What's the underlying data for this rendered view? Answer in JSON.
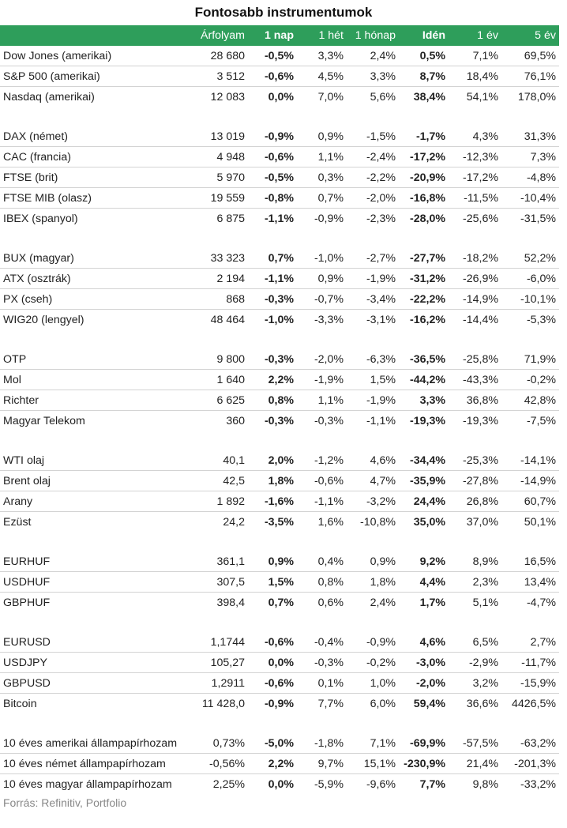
{
  "title": "Fontosabb instrumentumok",
  "source": "Forrás: Refinitiv, Portfolio",
  "colors": {
    "header_bg": "#2e9e5b",
    "header_text": "#ffffff",
    "divider": "#d3d3d3"
  },
  "headers": [
    "",
    "Árfolyam",
    "1 nap",
    "1 hét",
    "1 hónap",
    "Idén",
    "1 év",
    "5 év"
  ],
  "groups": [
    [
      [
        "Dow Jones (amerikai)",
        "28 680",
        "-0,5%",
        "3,3%",
        "2,4%",
        "0,5%",
        "7,1%",
        "69,5%"
      ],
      [
        "S&P 500 (amerikai)",
        "3 512",
        "-0,6%",
        "4,5%",
        "3,3%",
        "8,7%",
        "18,4%",
        "76,1%"
      ],
      [
        "Nasdaq (amerikai)",
        "12 083",
        "0,0%",
        "7,0%",
        "5,6%",
        "38,4%",
        "54,1%",
        "178,0%"
      ]
    ],
    [
      [
        "DAX (német)",
        "13 019",
        "-0,9%",
        "0,9%",
        "-1,5%",
        "-1,7%",
        "4,3%",
        "31,3%"
      ],
      [
        "CAC (francia)",
        "4 948",
        "-0,6%",
        "1,1%",
        "-2,4%",
        "-17,2%",
        "-12,3%",
        "7,3%"
      ],
      [
        "FTSE (brit)",
        "5 970",
        "-0,5%",
        "0,3%",
        "-2,2%",
        "-20,9%",
        "-17,2%",
        "-4,8%"
      ],
      [
        "FTSE MIB (olasz)",
        "19 559",
        "-0,8%",
        "0,7%",
        "-2,0%",
        "-16,8%",
        "-11,5%",
        "-10,4%"
      ],
      [
        "IBEX (spanyol)",
        "6 875",
        "-1,1%",
        "-0,9%",
        "-2,3%",
        "-28,0%",
        "-25,6%",
        "-31,5%"
      ]
    ],
    [
      [
        "BUX (magyar)",
        "33 323",
        "0,7%",
        "-1,0%",
        "-2,7%",
        "-27,7%",
        "-18,2%",
        "52,2%"
      ],
      [
        "ATX (osztrák)",
        "2 194",
        "-1,1%",
        "0,9%",
        "-1,9%",
        "-31,2%",
        "-26,9%",
        "-6,0%"
      ],
      [
        "PX (cseh)",
        "868",
        "-0,3%",
        "-0,7%",
        "-3,4%",
        "-22,2%",
        "-14,9%",
        "-10,1%"
      ],
      [
        "WIG20 (lengyel)",
        "48 464",
        "-1,0%",
        "-3,3%",
        "-3,1%",
        "-16,2%",
        "-14,4%",
        "-5,3%"
      ]
    ],
    [
      [
        "OTP",
        "9 800",
        "-0,3%",
        "-2,0%",
        "-6,3%",
        "-36,5%",
        "-25,8%",
        "71,9%"
      ],
      [
        "Mol",
        "1 640",
        "2,2%",
        "-1,9%",
        "1,5%",
        "-44,2%",
        "-43,3%",
        "-0,2%"
      ],
      [
        "Richter",
        "6 625",
        "0,8%",
        "1,1%",
        "-1,9%",
        "3,3%",
        "36,8%",
        "42,8%"
      ],
      [
        "Magyar Telekom",
        "360",
        "-0,3%",
        "-0,3%",
        "-1,1%",
        "-19,3%",
        "-19,3%",
        "-7,5%"
      ]
    ],
    [
      [
        "WTI olaj",
        "40,1",
        "2,0%",
        "-1,2%",
        "4,6%",
        "-34,4%",
        "-25,3%",
        "-14,1%"
      ],
      [
        "Brent olaj",
        "42,5",
        "1,8%",
        "-0,6%",
        "4,7%",
        "-35,9%",
        "-27,8%",
        "-14,9%"
      ],
      [
        "Arany",
        "1 892",
        "-1,6%",
        "-1,1%",
        "-3,2%",
        "24,4%",
        "26,8%",
        "60,7%"
      ],
      [
        "Ezüst",
        "24,2",
        "-3,5%",
        "1,6%",
        "-10,8%",
        "35,0%",
        "37,0%",
        "50,1%"
      ]
    ],
    [
      [
        "EURHUF",
        "361,1",
        "0,9%",
        "0,4%",
        "0,9%",
        "9,2%",
        "8,9%",
        "16,5%"
      ],
      [
        "USDHUF",
        "307,5",
        "1,5%",
        "0,8%",
        "1,8%",
        "4,4%",
        "2,3%",
        "13,4%"
      ],
      [
        "GBPHUF",
        "398,4",
        "0,7%",
        "0,6%",
        "2,4%",
        "1,7%",
        "5,1%",
        "-4,7%"
      ]
    ],
    [
      [
        "EURUSD",
        "1,1744",
        "-0,6%",
        "-0,4%",
        "-0,9%",
        "4,6%",
        "6,5%",
        "2,7%"
      ],
      [
        "USDJPY",
        "105,27",
        "0,0%",
        "-0,3%",
        "-0,2%",
        "-3,0%",
        "-2,9%",
        "-11,7%"
      ],
      [
        "GBPUSD",
        "1,2911",
        "-0,6%",
        "0,1%",
        "1,0%",
        "-2,0%",
        "3,2%",
        "-15,9%"
      ],
      [
        "Bitcoin",
        "11 428,0",
        "-0,9%",
        "7,7%",
        "6,0%",
        "59,4%",
        "36,6%",
        "4426,5%"
      ]
    ],
    [
      [
        "10 éves amerikai állampapírhozam",
        "0,73%",
        "-5,0%",
        "-1,8%",
        "7,1%",
        "-69,9%",
        "-57,5%",
        "-63,2%"
      ],
      [
        "10 éves német állampapírhozam",
        "-0,56%",
        "2,2%",
        "9,7%",
        "15,1%",
        "-230,9%",
        "21,4%",
        "-201,3%"
      ],
      [
        "10 éves magyar állampapírhozam",
        "2,25%",
        "0,0%",
        "-5,9%",
        "-9,6%",
        "7,7%",
        "9,8%",
        "-33,2%"
      ]
    ]
  ]
}
